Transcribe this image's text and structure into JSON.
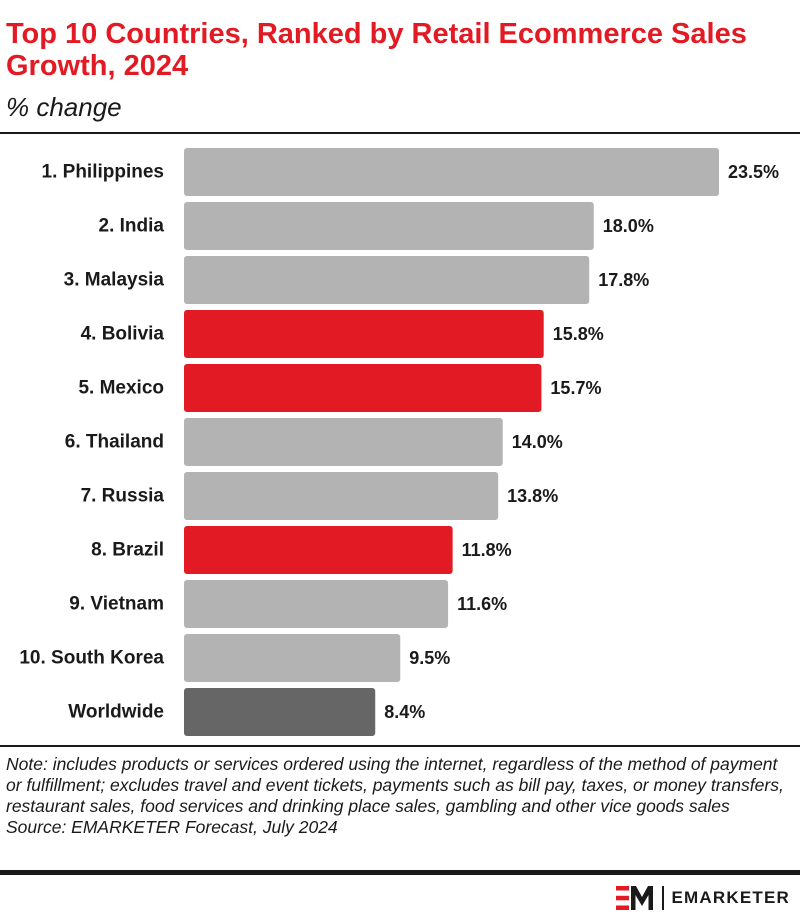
{
  "header": {
    "title": "Top 10 Countries, Ranked by Retail Ecommerce Sales Growth, 2024",
    "subtitle": "% change"
  },
  "colors": {
    "accent": "#e21a23",
    "bar_default": "#b3b3b3",
    "bar_highlight": "#e21a23",
    "bar_worldwide": "#666666"
  },
  "chart_data": {
    "type": "bar",
    "orientation": "horizontal",
    "title": "Top 10 Countries, Ranked by Retail Ecommerce Sales Growth, 2024",
    "subtitle": "% change",
    "categories": [
      "1. Philippines",
      "2. India",
      "3. Malaysia",
      "4. Bolivia",
      "5. Mexico",
      "6. Thailand",
      "7. Russia",
      "8. Brazil",
      "9. Vietnam",
      "10. South Korea",
      "Worldwide"
    ],
    "values": [
      23.5,
      18.0,
      17.8,
      15.8,
      15.7,
      14.0,
      13.8,
      11.8,
      11.6,
      9.5,
      8.4
    ],
    "value_labels": [
      "23.5%",
      "18.0%",
      "17.8%",
      "15.8%",
      "15.7%",
      "14.0%",
      "13.8%",
      "11.8%",
      "11.6%",
      "9.5%",
      "8.4%"
    ],
    "highlight": [
      "default",
      "default",
      "default",
      "highlight",
      "highlight",
      "default",
      "default",
      "highlight",
      "default",
      "default",
      "worldwide"
    ],
    "xlim": [
      0,
      23.5
    ],
    "grid": false,
    "legend": "none"
  },
  "footer": {
    "note": "Note: includes products or services ordered using the internet, regardless of the method of payment or fulfillment; excludes travel and event tickets, payments such as bill pay, taxes, or money transfers, restaurant sales, food services and drinking place sales, gambling and other vice goods sales",
    "source": "Source: EMARKETER Forecast, July 2024",
    "brand": "EMARKETER",
    "logo_icon": "emarketer-em-logo-icon"
  }
}
